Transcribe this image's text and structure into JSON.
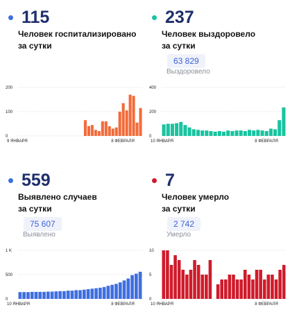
{
  "panels": [
    {
      "value": "115",
      "caption1": "Человек госпитализировано",
      "caption2": "за сутки",
      "color": "#f26b3a",
      "dot_color": "#3f6fe0",
      "chart_data": {
        "type": "bar",
        "yticks": [
          "200",
          "100",
          "0"
        ],
        "ylim": [
          0,
          200
        ],
        "x_start": "9 ЯНВАРЯ",
        "x_end": "8 ФЕВРАЛЯ",
        "values": [
          null,
          null,
          null,
          null,
          null,
          null,
          null,
          null,
          null,
          null,
          null,
          null,
          null,
          null,
          null,
          null,
          null,
          null,
          null,
          65,
          40,
          45,
          25,
          20,
          60,
          60,
          40,
          30,
          35,
          100,
          135,
          105,
          170,
          165,
          55,
          115
        ]
      }
    },
    {
      "value": "237",
      "caption1": "Человек выздоровело",
      "caption2": "за сутки",
      "pill": "63 829",
      "sub": "Выздоровело",
      "color": "#19c3a0",
      "dot_color": "#19c3a0",
      "chart_data": {
        "type": "bar",
        "yticks": [
          "400",
          "200",
          "0"
        ],
        "ylim": [
          0,
          400
        ],
        "x_start": "10 ЯНВАРЯ",
        "x_end": "8 ФЕВРАЛЯ",
        "values": [
          95,
          100,
          100,
          105,
          115,
          90,
          70,
          55,
          50,
          45,
          45,
          40,
          35,
          40,
          35,
          45,
          40,
          45,
          45,
          40,
          50,
          45,
          50,
          45,
          40,
          60,
          55,
          130,
          235
        ]
      }
    },
    {
      "value": "559",
      "caption1": "Выявлено случаев",
      "caption2": "за сутки",
      "pill": "75 607",
      "sub": "Выявлено",
      "color": "#3f6fe0",
      "dot_color": "#3f6fe0",
      "chart_data": {
        "type": "bar",
        "yticks": [
          "1 K",
          "500",
          "0"
        ],
        "ylim": [
          0,
          1000
        ],
        "x_start": "10 ЯНВАРЯ",
        "x_end": "8 ФЕВРАЛЯ",
        "values": [
          140,
          140,
          140,
          145,
          145,
          145,
          145,
          150,
          150,
          155,
          160,
          160,
          170,
          170,
          180,
          180,
          190,
          200,
          210,
          220,
          230,
          245,
          270,
          290,
          310,
          340,
          380,
          420,
          490,
          520,
          559
        ]
      }
    },
    {
      "value": "7",
      "caption1": "Человек умерло",
      "caption2": "за сутки",
      "pill": "2 742",
      "sub": "Умерло",
      "color": "#cf1b2b",
      "dot_color": "#cf1b2b",
      "chart_data": {
        "type": "bar",
        "yticks": [
          "10",
          "5",
          "0"
        ],
        "ylim": [
          0,
          10
        ],
        "x_start": "10 ЯНВАРЯ",
        "x_end": "8 ФЕВРАЛЯ",
        "values": [
          10,
          10,
          7,
          9,
          8,
          6,
          5,
          6,
          8,
          7,
          5,
          5,
          8,
          null,
          3,
          4,
          4,
          5,
          5,
          4,
          4,
          6,
          5,
          4,
          6,
          6,
          4,
          5,
          5,
          4,
          6,
          7
        ]
      }
    }
  ]
}
